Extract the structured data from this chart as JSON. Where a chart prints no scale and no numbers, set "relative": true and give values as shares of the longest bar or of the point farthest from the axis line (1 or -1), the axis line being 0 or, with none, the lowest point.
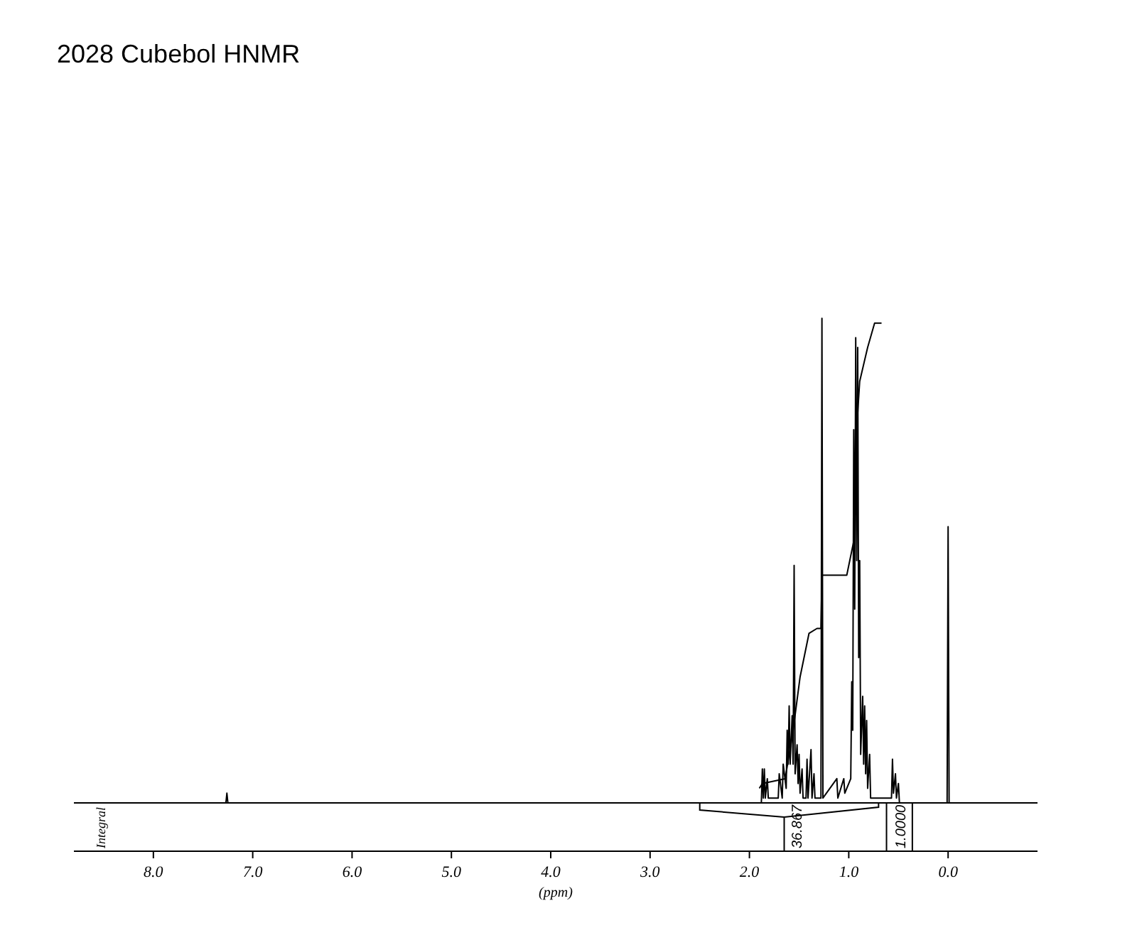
{
  "chart_data": {
    "type": "line",
    "title": "2028 Cubebol HNMR",
    "xlabel": "(ppm)",
    "ylabel": "Integral",
    "relative": true,
    "grid": false,
    "marker": "none",
    "line_style": "solid",
    "xlim": [
      8.8,
      -0.9
    ],
    "xticks": [
      {
        "value": 8,
        "label": "8.0"
      },
      {
        "value": 7,
        "label": "7.0"
      },
      {
        "value": 6,
        "label": "6.0"
      },
      {
        "value": 5,
        "label": "5.0"
      },
      {
        "value": 4,
        "label": "4.0"
      },
      {
        "value": 3,
        "label": "3.0"
      },
      {
        "value": 2,
        "label": "2.0"
      },
      {
        "value": 1,
        "label": "1.0"
      },
      {
        "value": 0,
        "label": "0.0"
      }
    ],
    "series": [
      {
        "color": "#000000",
        "x": [
          8.8,
          7.27,
          7.26,
          7.25,
          1.88,
          1.87,
          1.86,
          1.85,
          1.84,
          1.82,
          1.81,
          1.71,
          1.7,
          1.67,
          1.66,
          1.63,
          1.62,
          1.61,
          1.6,
          1.59,
          1.57,
          1.56,
          1.55,
          1.54,
          1.52,
          1.51,
          1.5,
          1.49,
          1.47,
          1.46,
          1.43,
          1.42,
          1.41,
          1.38,
          1.37,
          1.35,
          1.34,
          1.28,
          1.27,
          1.26,
          1.12,
          1.11,
          1.05,
          1.04,
          0.98,
          0.97,
          0.96,
          0.95,
          0.94,
          0.93,
          0.92,
          0.91,
          0.9,
          0.89,
          0.88,
          0.86,
          0.85,
          0.84,
          0.83,
          0.82,
          0.81,
          0.79,
          0.78,
          0.57,
          0.56,
          0.55,
          0.53,
          0.52,
          0.5,
          0.49,
          0.01,
          0.0,
          -0.01,
          -0.9
        ],
        "values": [
          0,
          0,
          0.02,
          0,
          0,
          0.07,
          0.01,
          0.07,
          0.01,
          0.05,
          0.01,
          0.01,
          0.06,
          0.01,
          0.08,
          0.03,
          0.15,
          0.08,
          0.2,
          0.08,
          0.18,
          0.08,
          0.49,
          0.06,
          0.12,
          0.04,
          0.1,
          0.02,
          0.07,
          0.01,
          0.01,
          0.09,
          0.01,
          0.11,
          0.01,
          0.06,
          0.01,
          0.01,
          1.0,
          0.01,
          0.05,
          0.01,
          0.05,
          0.02,
          0.05,
          0.25,
          0.15,
          0.77,
          0.4,
          0.96,
          0.5,
          0.94,
          0.3,
          0.5,
          0.1,
          0.22,
          0.08,
          0.2,
          0.06,
          0.17,
          0.03,
          0.1,
          0.01,
          0.01,
          0.09,
          0.02,
          0.06,
          0.01,
          0.04,
          0,
          0,
          0.57,
          0,
          0
        ]
      },
      {
        "color": "#000000",
        "x": [
          1.9,
          1.87,
          1.64,
          1.56,
          1.49,
          1.4,
          1.32,
          1.28,
          1.27,
          1.02,
          0.95,
          0.93,
          0.89,
          0.81,
          0.74,
          0.67
        ],
        "values": [
          0.03,
          0.04,
          0.05,
          0.15,
          0.26,
          0.35,
          0.36,
          0.36,
          0.47,
          0.47,
          0.54,
          0.74,
          0.87,
          0.94,
          0.99,
          0.99
        ]
      }
    ],
    "annotations": [
      "36.867",
      "1.0000"
    ]
  }
}
